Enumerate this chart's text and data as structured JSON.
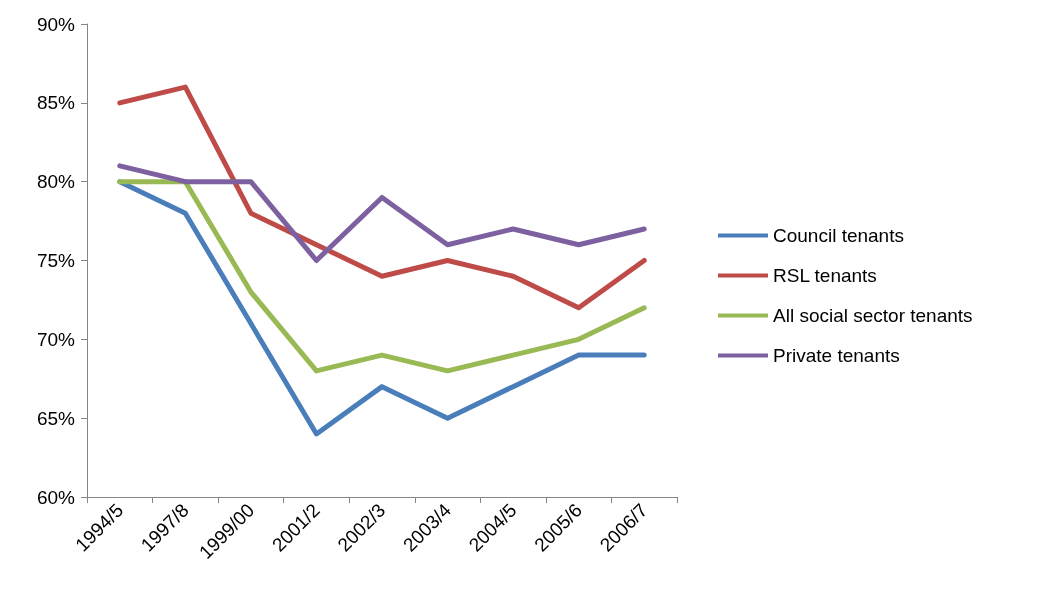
{
  "chart_data": {
    "type": "line",
    "categories": [
      "1994/5",
      "1997/8",
      "1999/00",
      "2001/2",
      "2002/3",
      "2003/4",
      "2004/5",
      "2005/6",
      "2006/7"
    ],
    "series": [
      {
        "name": "Council tenants",
        "color": "#4a7ebb",
        "values": [
          80,
          78,
          71,
          64,
          67,
          65,
          67,
          69,
          69
        ]
      },
      {
        "name": "RSL tenants",
        "color": "#be4b48",
        "values": [
          85,
          86,
          78,
          76,
          74,
          75,
          74,
          72,
          75
        ]
      },
      {
        "name": "All social sector tenants",
        "color": "#98b954",
        "values": [
          80,
          80,
          73,
          68,
          69,
          68,
          69,
          70,
          72
        ]
      },
      {
        "name": "Private tenants",
        "color": "#7d60a0",
        "values": [
          81,
          80,
          80,
          75,
          79,
          76,
          77,
          76,
          77
        ]
      }
    ],
    "ylim": [
      60,
      90
    ],
    "yticks": [
      {
        "value": 60,
        "label": "60%"
      },
      {
        "value": 65,
        "label": "65%"
      },
      {
        "value": 70,
        "label": "70%"
      },
      {
        "value": 75,
        "label": "75%"
      },
      {
        "value": 80,
        "label": "80%"
      },
      {
        "value": 85,
        "label": "85%"
      },
      {
        "value": 90,
        "label": "90%"
      }
    ],
    "grid": false,
    "legend": "right",
    "marker": "none",
    "line_style": "solid"
  }
}
